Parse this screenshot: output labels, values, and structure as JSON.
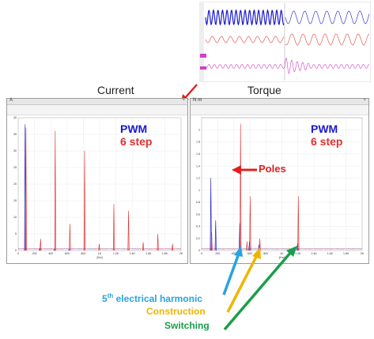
{
  "titles": {
    "left": "Current",
    "right": "Torque"
  },
  "panels": {
    "left": {
      "unit": "A",
      "close": "×",
      "pwm": "PWM",
      "six_step": "6 step",
      "x_unit": "[Hz]"
    },
    "right": {
      "unit": "N·m",
      "close": "×",
      "pwm": "PWM",
      "six_step": "6 step",
      "x_unit": "[Hz]",
      "poles_label": "Poles"
    }
  },
  "annotations": {
    "harmonic_base": "5",
    "harmonic_sup": "th",
    "harmonic_rest": " electrical harmonic",
    "construction": "Construction",
    "switching": "Switching"
  },
  "colors": {
    "pwm": "#1a1acc",
    "six_step": "#e03030",
    "poles_arrow": "#e02020",
    "harmonic": "#29a3e0",
    "construction": "#f0b400",
    "switching": "#1a9e4a",
    "top_blue": "#1a1acc",
    "top_red": "#e04040",
    "top_magenta": "#d040c0"
  },
  "chart_data": [
    {
      "type": "line",
      "title": "Current",
      "xlabel": "[Hz]",
      "xlim": [
        0,
        2000
      ],
      "ylim": [
        0,
        40
      ],
      "x_ticks": [
        0,
        200,
        400,
        600,
        800,
        1000,
        1200,
        1400,
        1600,
        1800,
        2000
      ],
      "x_tick_labels": [
        "0",
        "200",
        "400",
        "600",
        "800",
        "1K",
        "1.2K",
        "1.4K",
        "1.6K",
        "1.8K",
        "2K"
      ],
      "y_ticks": [
        0,
        5,
        10,
        15,
        20,
        25,
        30,
        35,
        40
      ],
      "series": [
        {
          "name": "PWM",
          "color": "#1a1acc",
          "peaks": [
            [
              90,
              38
            ],
            [
              270,
              0.6
            ],
            [
              450,
              0.4
            ],
            [
              630,
              0.3
            ]
          ]
        },
        {
          "name": "6 step",
          "color": "#e03030",
          "peaks": [
            [
              90,
              37
            ],
            [
              270,
              3.5
            ],
            [
              450,
              36
            ],
            [
              630,
              8
            ],
            [
              810,
              30
            ],
            [
              990,
              2
            ],
            [
              1170,
              14
            ],
            [
              1350,
              12
            ],
            [
              1530,
              2.5
            ],
            [
              1710,
              5
            ],
            [
              1890,
              2
            ]
          ]
        }
      ]
    },
    {
      "type": "line",
      "title": "Torque",
      "xlabel": "[Hz]",
      "xlim": [
        0,
        2000
      ],
      "ylim": [
        0,
        2.2
      ],
      "x_ticks": [
        0,
        200,
        400,
        600,
        800,
        1000,
        1200,
        1400,
        1600,
        1800,
        2000
      ],
      "x_tick_labels": [
        "0",
        "200",
        "400",
        "600",
        "800",
        "1K",
        "1.2K",
        "1.4K",
        "1.6K",
        "1.8K",
        "2K"
      ],
      "y_ticks": [
        0,
        0.2,
        0.4,
        0.6,
        0.8,
        1.0,
        1.2,
        1.4,
        1.6,
        1.8,
        2.0
      ],
      "series": [
        {
          "name": "PWM",
          "color": "#1a1acc",
          "peaks": [
            [
              120,
              1.2
            ],
            [
              180,
              0.5
            ],
            [
              480,
              0.45
            ],
            [
              600,
              0.15
            ],
            [
              720,
              0.1
            ],
            [
              1200,
              0.12
            ]
          ]
        },
        {
          "name": "6 step",
          "color": "#e03030",
          "peaks": [
            [
              120,
              0.3
            ],
            [
              480,
              2.1
            ],
            [
              560,
              0.15
            ],
            [
              600,
              0.9
            ],
            [
              720,
              0.2
            ],
            [
              1200,
              0.9
            ]
          ]
        }
      ]
    }
  ]
}
